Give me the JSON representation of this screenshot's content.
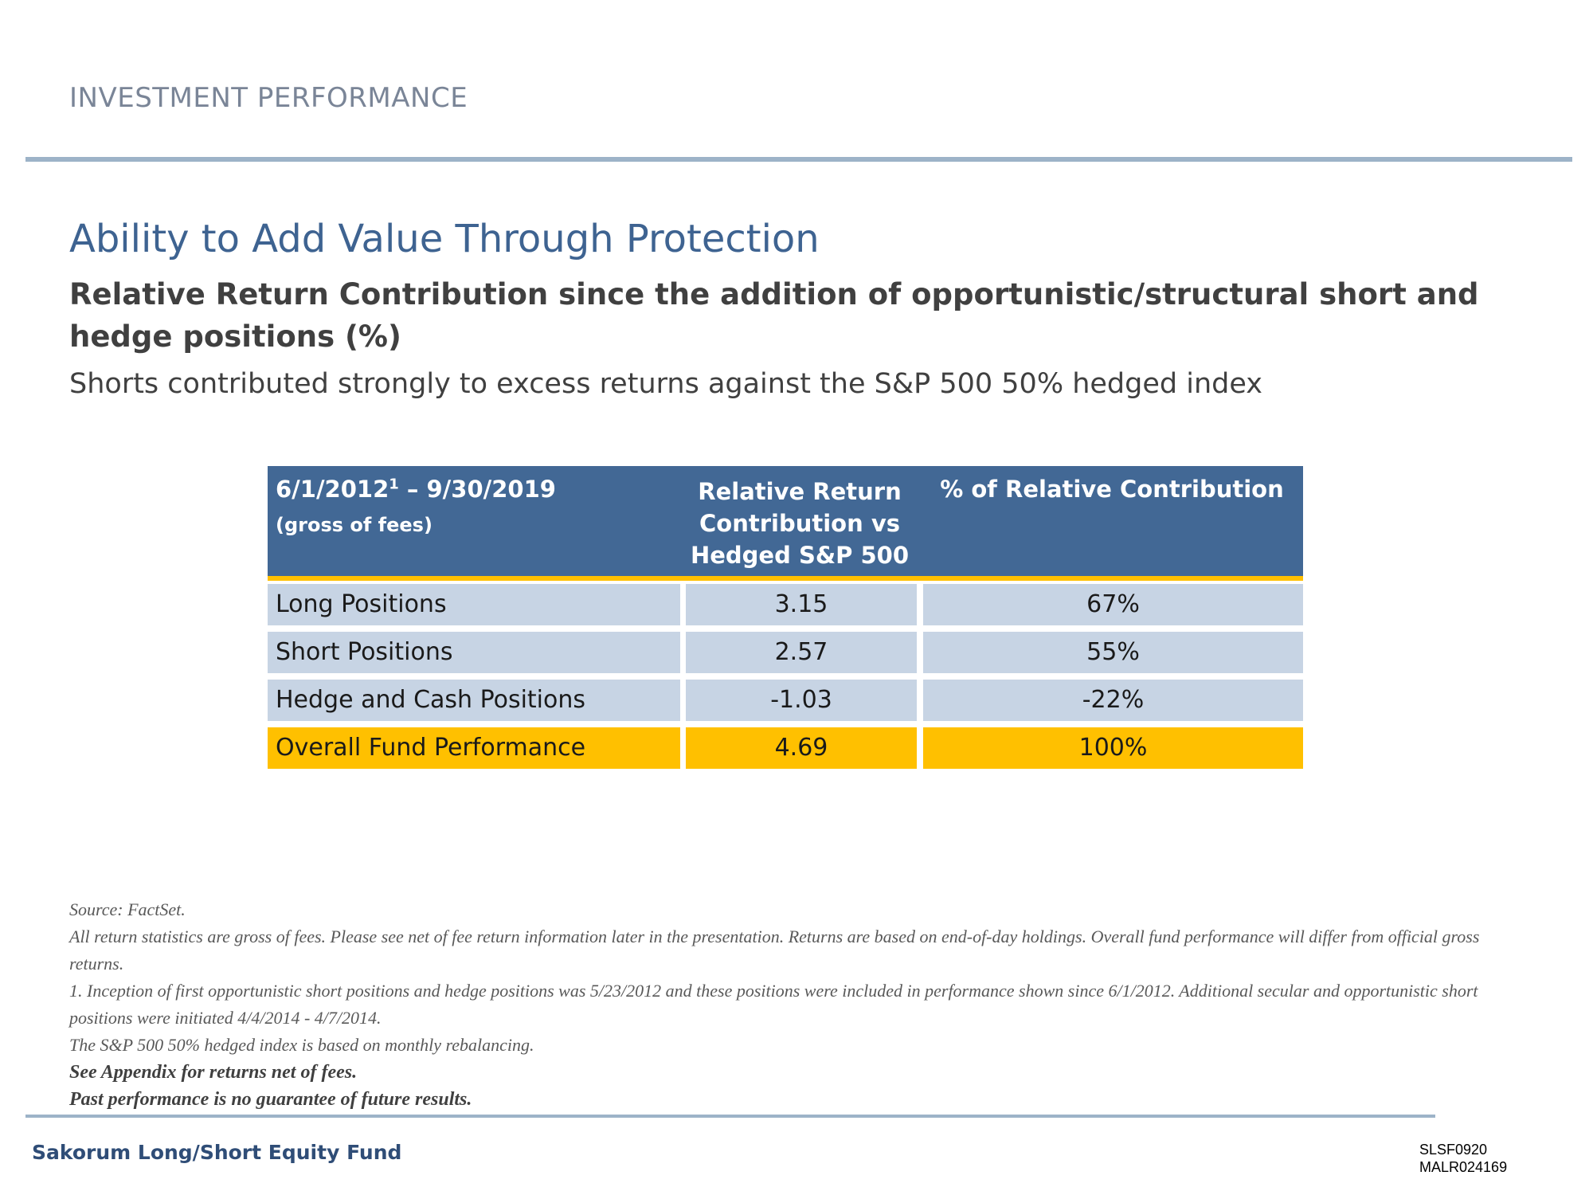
{
  "header": {
    "section_label": "INVESTMENT PERFORMANCE"
  },
  "main": {
    "title": "Ability to Add Value Through Protection",
    "subtitle": "Relative Return Contribution since the addition of opportunistic/structural short and hedge positions (%)",
    "tagline": "Shorts contributed strongly to excess returns against the S&P 500 50% hedged index"
  },
  "table": {
    "headers": {
      "period": "6/1/2012",
      "period_sup": "1",
      "period_end": " – 9/30/2019",
      "period_note": "(gross of fees)",
      "col1": "Relative Return Contribution vs Hedged S&P 500",
      "col2": "% of Relative Contribution"
    },
    "rows": [
      {
        "label": "Long Positions",
        "contribution": "3.15",
        "percent": "67%"
      },
      {
        "label": "Short Positions",
        "contribution": "2.57",
        "percent": "55%"
      },
      {
        "label": "Hedge and Cash Positions",
        "contribution": "-1.03",
        "percent": "-22%"
      },
      {
        "label": "Overall Fund Performance",
        "contribution": "4.69",
        "percent": "100%"
      }
    ]
  },
  "notes": {
    "source": "Source: FactSet.",
    "line1": "All return statistics are gross of fees. Please see net of fee return information later in the presentation. Returns are based on end-of-day holdings. Overall fund performance will differ from official gross returns.",
    "line2": "1. Inception of first opportunistic short positions and hedge positions was 5/23/2012 and these positions were included in performance shown since 6/1/2012. Additional secular and opportunistic short positions were initiated 4/4/2014 - 4/7/2014.",
    "line3": "The S&P 500 50% hedged index is based on monthly rebalancing.",
    "bold1": "See Appendix for returns net of fees.",
    "bold2": "Past performance is no guarantee of future results."
  },
  "footer": {
    "fund_name": "Sakorum Long/Short Equity Fund",
    "code1": "SLSF0920",
    "code2": "MALR024169"
  },
  "colors": {
    "header_blue": "#426895",
    "row_blue": "#c7d4e4",
    "highlight_gold": "#ffc000",
    "title_blue": "#3e6391",
    "rule_blue": "#9db3c8"
  }
}
